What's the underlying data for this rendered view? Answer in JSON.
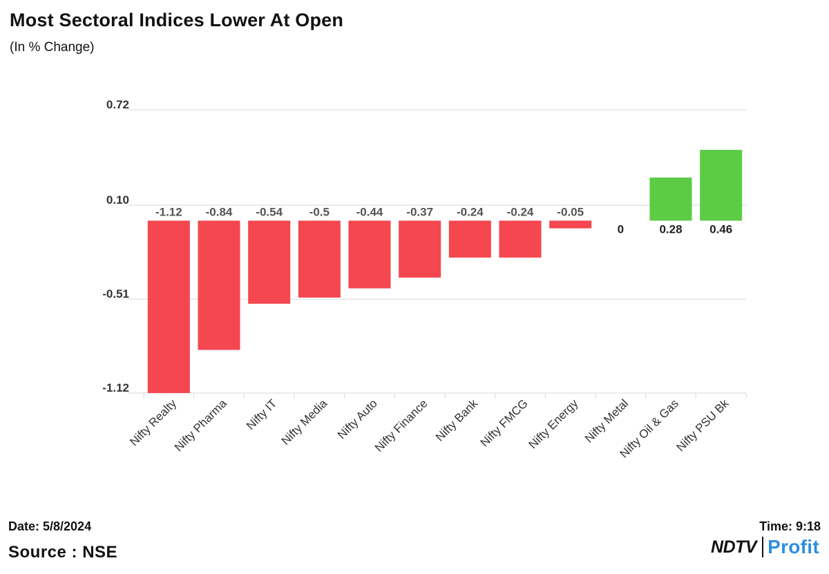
{
  "title": "Most Sectoral Indices Lower At Open",
  "subtitle": "(In % Change)",
  "footer": {
    "date": "Date: 5/8/2024",
    "time": "Time: 9:18",
    "source": "Source : NSE",
    "brand_part1": "NDTV",
    "brand_part2": "Profit"
  },
  "colors": {
    "negative": "#f4474f",
    "positive": "#5ccb45",
    "grid": "#d9d9d9"
  },
  "chart_data": {
    "type": "bar",
    "title": "Most Sectoral Indices Lower At Open",
    "subtitle": "(In % Change)",
    "categories": [
      "Nifty Realty",
      "Nifty Pharma",
      "Nifty IT",
      "Nifty Media",
      "Nifty Auto",
      "Nifty Finance",
      "Nifty Bank",
      "Nifty FMCG",
      "Nifty Energy",
      "Nifty Metal",
      "Nifty Oil & Gas",
      "Nifty PSU Bk"
    ],
    "values": [
      -1.12,
      -0.84,
      -0.54,
      -0.5,
      -0.44,
      -0.37,
      -0.24,
      -0.24,
      -0.05,
      0,
      0.28,
      0.46
    ],
    "value_labels": [
      "-1.12",
      "-0.84",
      "-0.54",
      "-0.5",
      "-0.44",
      "-0.37",
      "-0.24",
      "-0.24",
      "-0.05",
      "0",
      "0.28",
      "0.46"
    ],
    "yticks": [
      0.72,
      0.1,
      -0.51,
      -1.12
    ],
    "ytick_labels": [
      "0.72",
      "0.10",
      "-0.51",
      "-1.12"
    ],
    "ylim": [
      -1.12,
      0.72
    ],
    "xlabel": "",
    "ylabel": "",
    "grid": true,
    "legend": false
  }
}
